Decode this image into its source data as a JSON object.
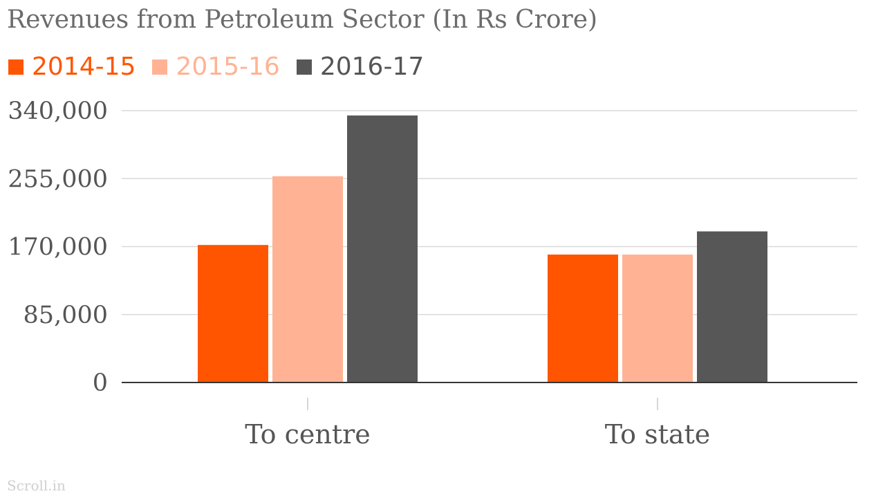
{
  "chart_data": {
    "type": "bar",
    "title": "Revenues from Petroleum Sector (In Rs Crore)",
    "categories": [
      "To centre",
      "To state"
    ],
    "series": [
      {
        "name": "2014-15",
        "color": "#ff5500",
        "values": [
          172000,
          160000
        ]
      },
      {
        "name": "2015-16",
        "color": "#ffb394",
        "values": [
          258000,
          160000
        ]
      },
      {
        "name": "2016-17",
        "color": "#575757",
        "values": [
          334000,
          189000
        ]
      }
    ],
    "yticks": [
      "0",
      "85,000",
      "170,000",
      "255,000",
      "340,000"
    ],
    "ylim": [
      0,
      340000
    ],
    "grid": true,
    "legend_position": "top-left"
  },
  "source": "Scroll.in"
}
